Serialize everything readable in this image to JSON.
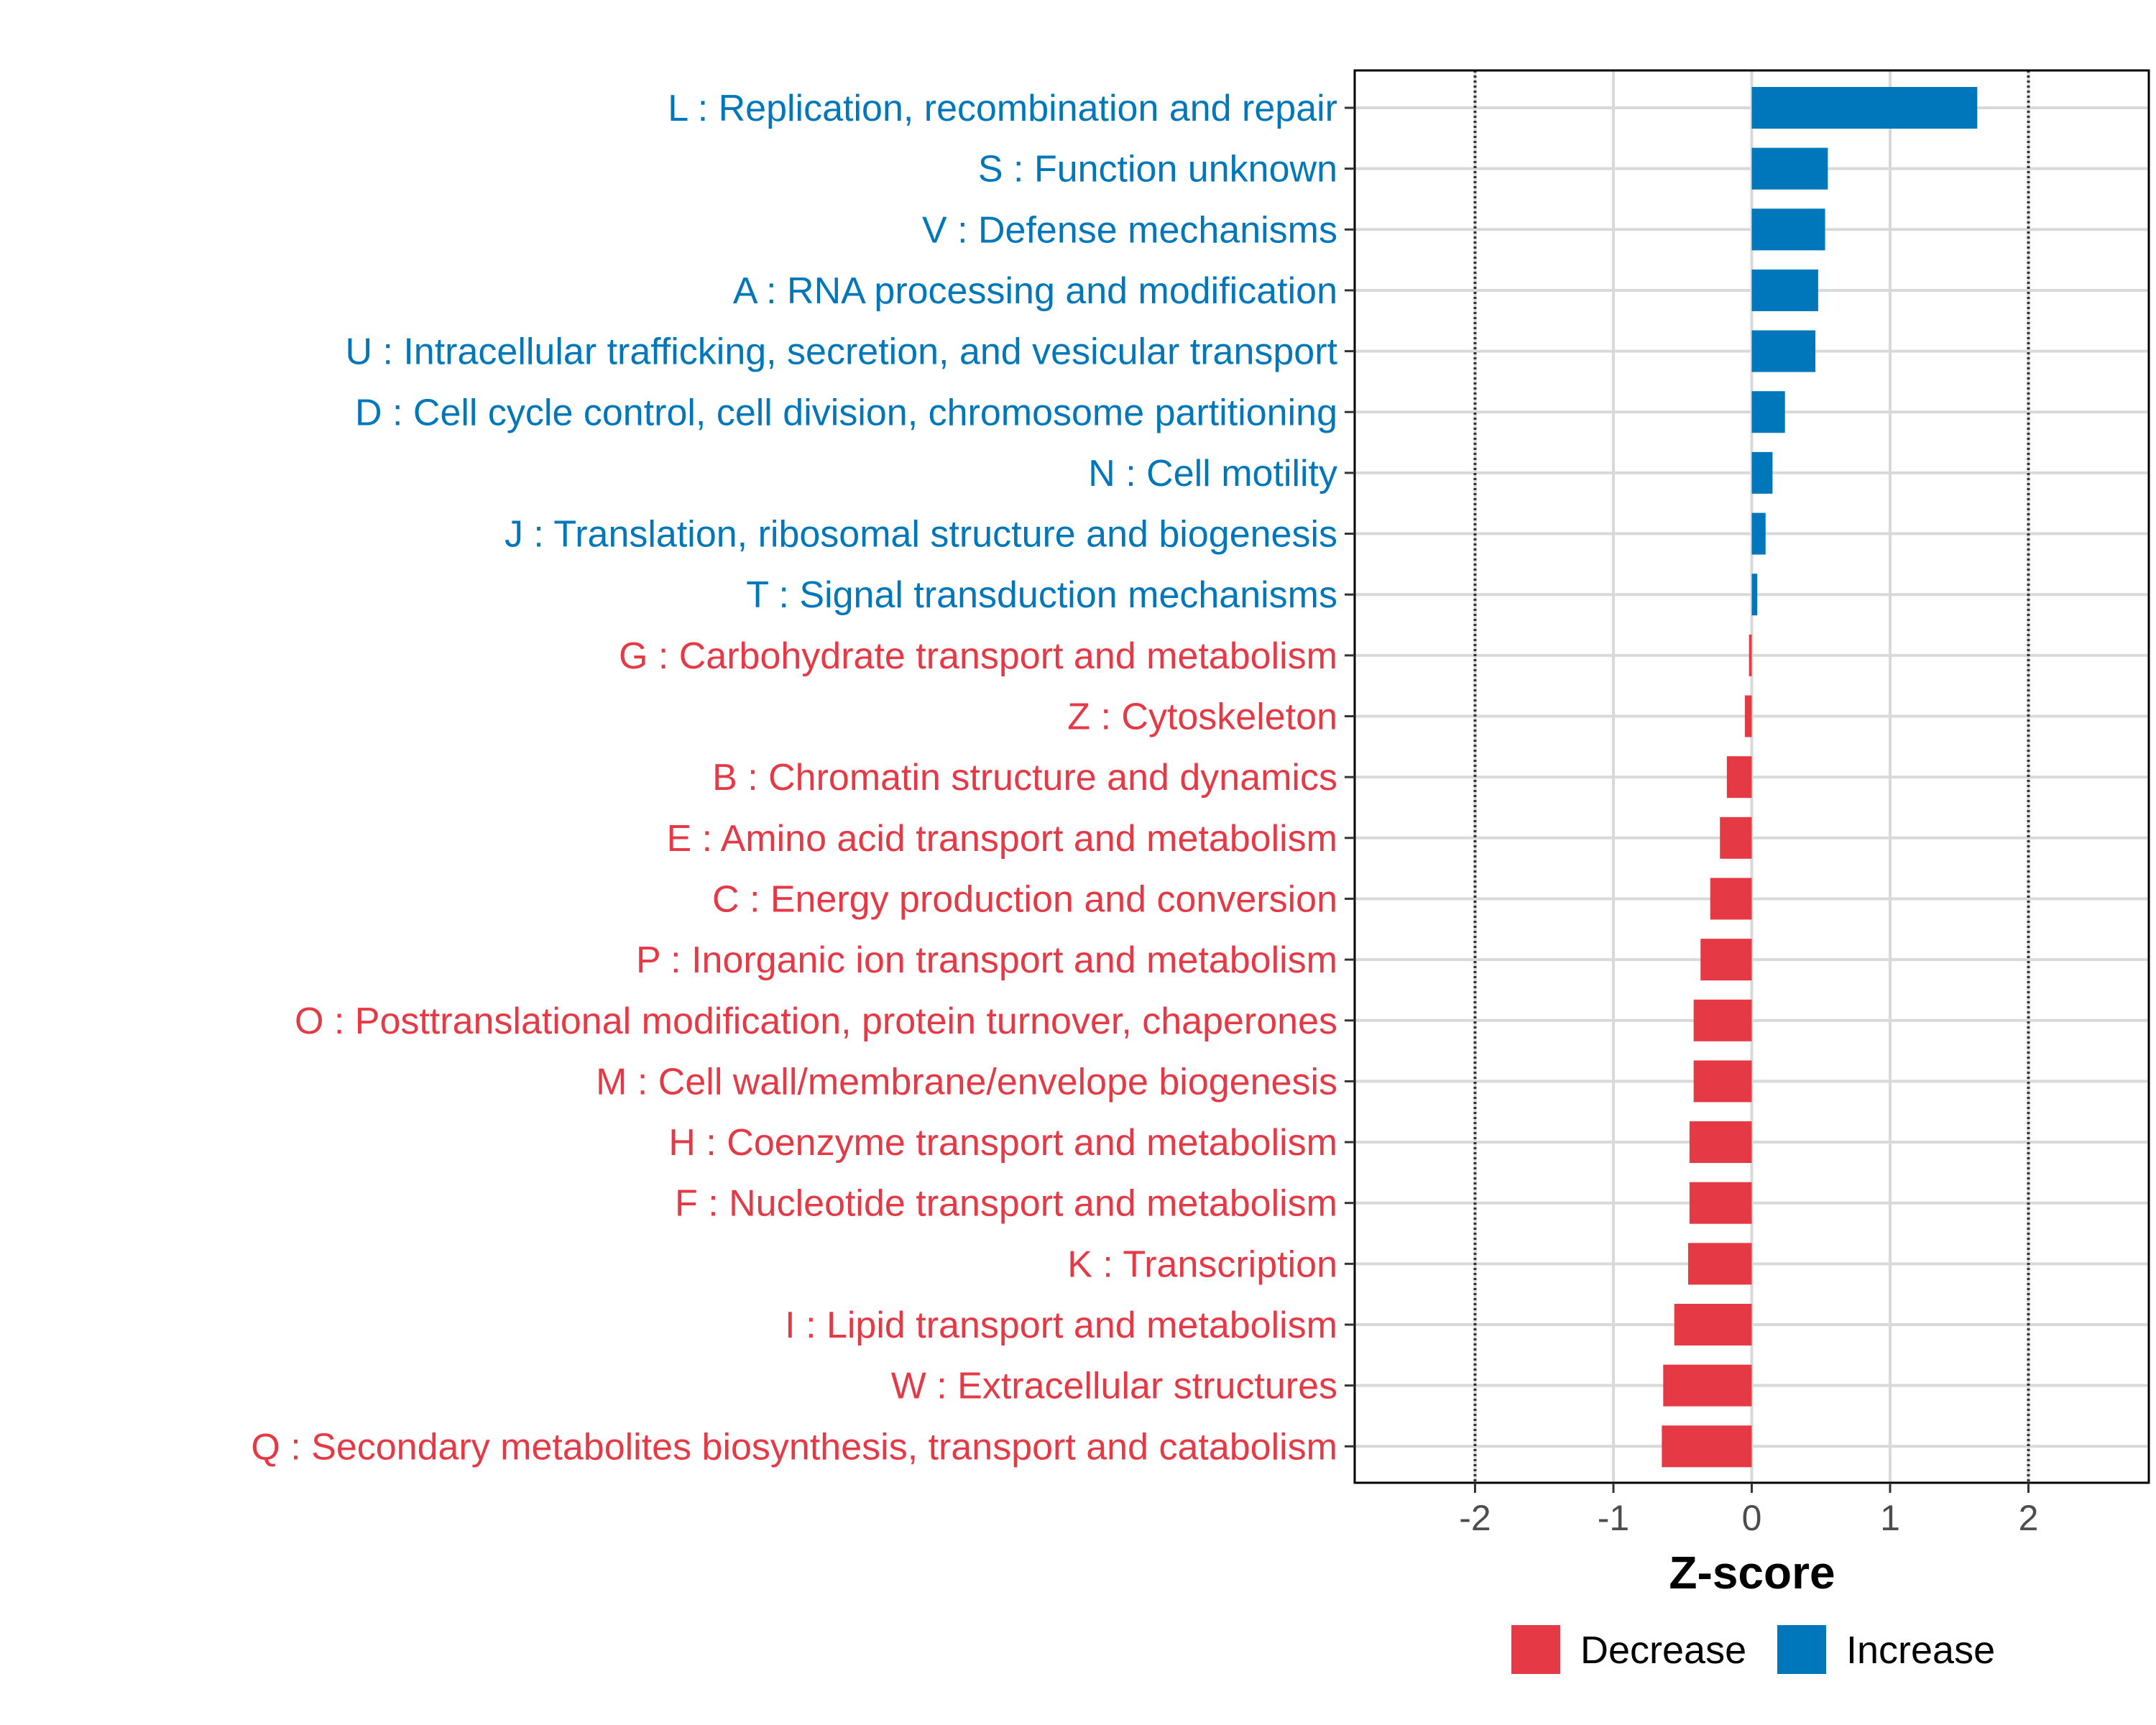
{
  "chart_data": {
    "type": "bar",
    "orientation": "horizontal",
    "title": "",
    "xlabel": "Z-score",
    "ylabel": "",
    "xlim": [
      -2.87,
      2.87
    ],
    "xticks": [
      -2,
      -1,
      0,
      1,
      2
    ],
    "reference_lines": [
      -2,
      2
    ],
    "grid": true,
    "legend_position": "bottom",
    "colors": {
      "Increase": "#0077bb",
      "Decrease": "#e63946"
    },
    "categories": [
      "L : Replication, recombination and repair",
      "S : Function unknown",
      "V : Defense mechanisms",
      "A : RNA processing and modification",
      "U : Intracellular trafficking, secretion, and vesicular transport",
      "D : Cell cycle control, cell division, chromosome partitioning",
      "N : Cell motility",
      "J : Translation, ribosomal structure and biogenesis",
      "T : Signal transduction mechanisms",
      "G : Carbohydrate transport and metabolism",
      "Z : Cytoskeleton",
      "B : Chromatin structure and dynamics",
      "E : Amino acid transport and metabolism",
      "C : Energy production and conversion",
      "P : Inorganic ion transport and metabolism",
      "O : Posttranslational modification, protein turnover, chaperones",
      "M : Cell wall/membrane/envelope biogenesis",
      "H : Coenzyme transport and metabolism",
      "F : Nucleotide transport and metabolism",
      "K : Transcription",
      "I : Lipid transport and metabolism",
      "W : Extracellular structures",
      "Q : Secondary metabolites biosynthesis, transport and catabolism"
    ],
    "values": [
      1.63,
      0.55,
      0.53,
      0.48,
      0.46,
      0.24,
      0.15,
      0.1,
      0.04,
      -0.02,
      -0.05,
      -0.18,
      -0.23,
      -0.3,
      -0.37,
      -0.42,
      -0.42,
      -0.45,
      -0.45,
      -0.46,
      -0.56,
      -0.64,
      -0.65
    ],
    "groups": [
      "Increase",
      "Increase",
      "Increase",
      "Increase",
      "Increase",
      "Increase",
      "Increase",
      "Increase",
      "Increase",
      "Decrease",
      "Decrease",
      "Decrease",
      "Decrease",
      "Decrease",
      "Decrease",
      "Decrease",
      "Decrease",
      "Decrease",
      "Decrease",
      "Decrease",
      "Decrease",
      "Decrease",
      "Decrease"
    ],
    "legend": [
      "Decrease",
      "Increase"
    ]
  }
}
